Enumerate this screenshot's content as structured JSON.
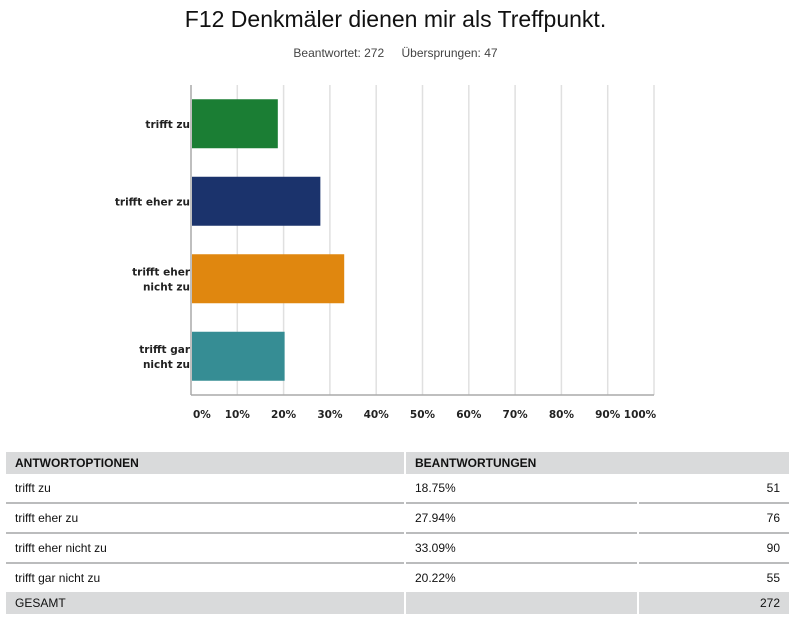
{
  "title": "F12 Denkmäler dienen mir als Treffpunkt.",
  "stats": {
    "answered": "Beantwortet: 272",
    "skipped": "Übersprungen: 47"
  },
  "chart_data": {
    "type": "bar",
    "orientation": "horizontal",
    "title": "F12 Denkmäler dienen mir als Treffpunkt.",
    "categories": [
      [
        "trifft zu"
      ],
      [
        "trifft eher zu"
      ],
      [
        "trifft eher",
        "nicht zu"
      ],
      [
        "trifft gar",
        "nicht zu"
      ]
    ],
    "values": [
      18.75,
      27.94,
      33.09,
      20.22
    ],
    "colors": [
      "#1b7e34",
      "#1b336c",
      "#e0870f",
      "#368d94"
    ],
    "xlim": [
      0,
      100
    ],
    "xticks": [
      "0%",
      "10%",
      "20%",
      "30%",
      "40%",
      "50%",
      "60%",
      "70%",
      "80%",
      "90%",
      "100%"
    ],
    "grid": true
  },
  "table": {
    "headers": [
      "ANTWORTOPTIONEN",
      "BEANTWORTUNGEN"
    ],
    "rows": [
      {
        "option": "trifft zu",
        "percent": "18.75%",
        "count": "51"
      },
      {
        "option": "trifft eher zu",
        "percent": "27.94%",
        "count": "76"
      },
      {
        "option": "trifft eher nicht zu",
        "percent": "33.09%",
        "count": "90"
      },
      {
        "option": "trifft gar nicht zu",
        "percent": "20.22%",
        "count": "55"
      }
    ],
    "total_label": "GESAMT",
    "total": "272"
  }
}
